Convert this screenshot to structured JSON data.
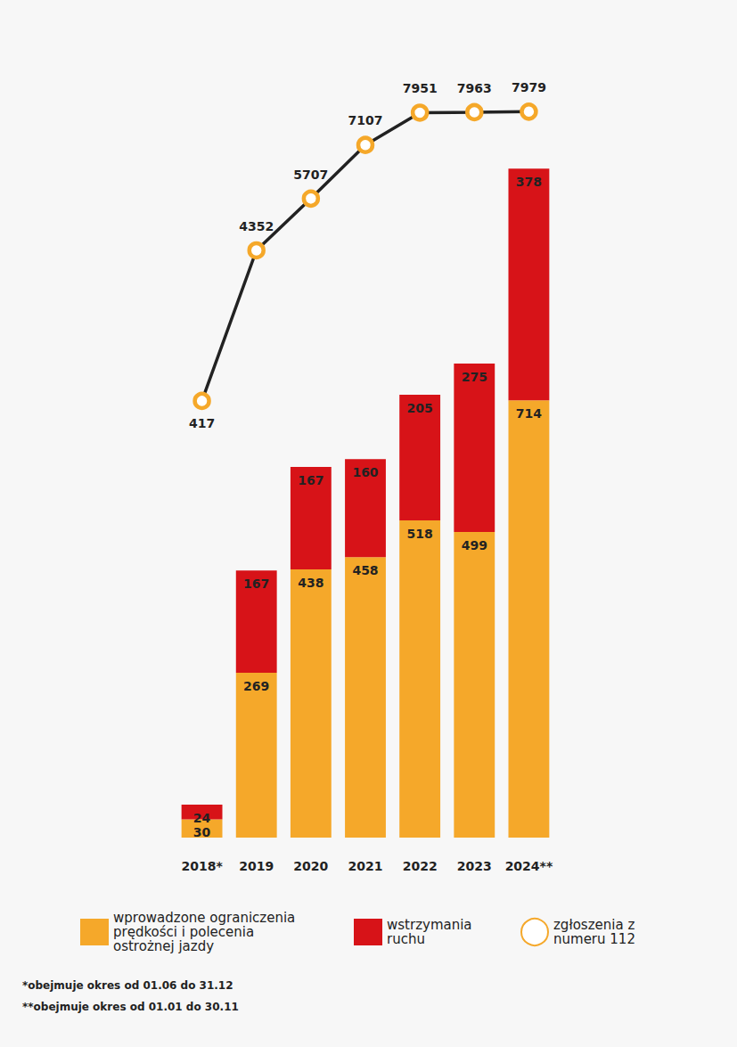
{
  "chart_data": {
    "type": "bar",
    "categories": [
      "2018*",
      "2019",
      "2020",
      "2021",
      "2022",
      "2023",
      "2024**"
    ],
    "series": [
      {
        "name": "wprowadzone ograniczenia prędkości i polecenia ostrożnej jazdy",
        "color": "#f5a82a",
        "values": [
          30,
          269,
          438,
          458,
          518,
          499,
          714
        ]
      },
      {
        "name": "wstrzymania ruchu",
        "color": "#d71318",
        "values": [
          24,
          167,
          167,
          160,
          205,
          275,
          378
        ]
      },
      {
        "name": "zgłoszenia z numeru 112",
        "type": "line",
        "axis": "y2",
        "color": "#f5a82a",
        "marker": "circle",
        "values": [
          417,
          4352,
          5707,
          7107,
          7951,
          7963,
          7979
        ]
      }
    ],
    "ylim": [
      0,
      1280
    ],
    "y2lim": [
      -11000,
      9500
    ],
    "stacked": true,
    "data_labels": true,
    "tick_labels": "x",
    "grid": false,
    "legend": "bottom",
    "annotations": [
      "*obejmuje okres od 01.06 do 31.12",
      "**obejmuje okres od 01.01 do 30.11"
    ]
  }
}
